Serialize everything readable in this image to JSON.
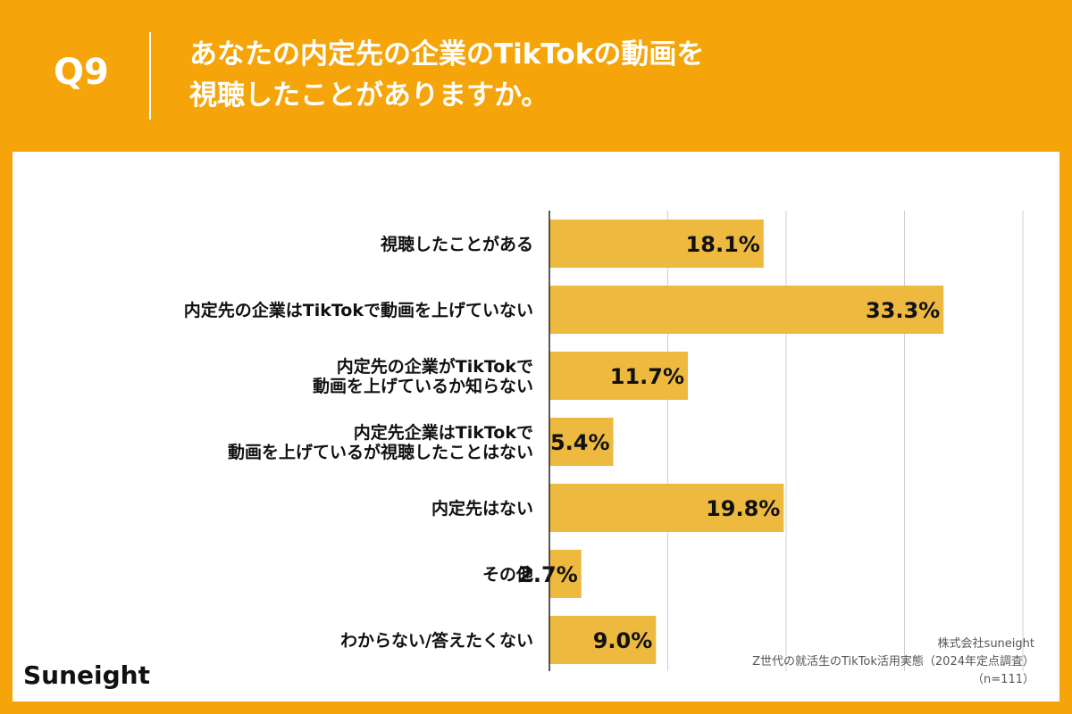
{
  "header": {
    "question_number": "Q9",
    "title_line1": "あなたの内定先の企業のTikTokの動画を",
    "title_line2": "視聴したことがありますか。"
  },
  "brand": {
    "logo_text": "Suneight"
  },
  "source": {
    "line1": "株式会社suneight",
    "line2": "Z世代の就活生のTikTok活用実態（2024年定点調査）",
    "line3": "（n=111）"
  },
  "colors": {
    "background": "#F5A50A",
    "bar": "#EDB93F",
    "panel": "#FFFFFF",
    "text": "#111111"
  },
  "chart_data": {
    "type": "bar",
    "orientation": "horizontal",
    "categories": [
      [
        "視聴したことがある"
      ],
      [
        "内定先の企業はTikTokで動画を上げていない"
      ],
      [
        "内定先の企業がTikTokで",
        "動画を上げているか知らない"
      ],
      [
        "内定先企業はTikTokで",
        "動画を上げているが視聴したことはない"
      ],
      [
        "内定先はない"
      ],
      [
        "その他"
      ],
      [
        "わからない/答えたくない"
      ]
    ],
    "values": [
      18.1,
      33.3,
      11.7,
      5.4,
      19.8,
      2.7,
      9.0
    ],
    "value_labels": [
      "18.1%",
      "33.3%",
      "11.7%",
      "5.4%",
      "19.8%",
      "2.7%",
      "9.0%"
    ],
    "xlim": [
      0,
      40
    ],
    "grid": true,
    "title": "",
    "xlabel": "",
    "ylabel": ""
  }
}
